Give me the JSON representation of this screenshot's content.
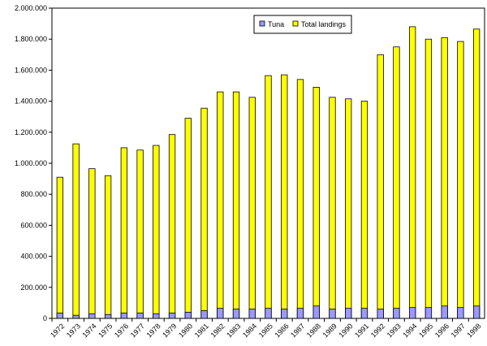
{
  "chart_data": {
    "type": "bar",
    "stacked": true,
    "categories": [
      "1972",
      "1973",
      "1974",
      "1975",
      "1976",
      "1977",
      "1978",
      "1979",
      "1980",
      "1981",
      "1982",
      "1983",
      "1984",
      "1985",
      "1986",
      "1987",
      "1988",
      "1989",
      "1990",
      "1991",
      "1992",
      "1993",
      "1994",
      "1995",
      "1996",
      "1997",
      "1998"
    ],
    "series": [
      {
        "name": "Tuna",
        "color": "#9999ff",
        "values": [
          35000,
          20000,
          30000,
          25000,
          35000,
          35000,
          30000,
          35000,
          40000,
          50000,
          65000,
          60000,
          60000,
          65000,
          60000,
          65000,
          80000,
          60000,
          65000,
          65000,
          60000,
          65000,
          70000,
          70000,
          80000,
          70000,
          80000
        ]
      },
      {
        "name": "Total landings",
        "color": "#ffff00",
        "values": [
          910000,
          1125000,
          965000,
          920000,
          1100000,
          1085000,
          1115000,
          1185000,
          1290000,
          1355000,
          1460000,
          1460000,
          1425000,
          1565000,
          1570000,
          1540000,
          1490000,
          1425000,
          1415000,
          1400000,
          1700000,
          1750000,
          1880000,
          1800000,
          1810000,
          1785000,
          1865000
        ]
      }
    ],
    "y_ticks": [
      "0",
      "200.000",
      "400.000",
      "600.000",
      "800.000",
      "1.000.000",
      "1.200.000",
      "1.400.000",
      "1.600.000",
      "1.800.000",
      "2.000.000"
    ],
    "ylim": [
      0,
      2000000
    ],
    "grid": false,
    "legend_position": "top-center",
    "title": "",
    "xlabel": "",
    "ylabel": ""
  }
}
